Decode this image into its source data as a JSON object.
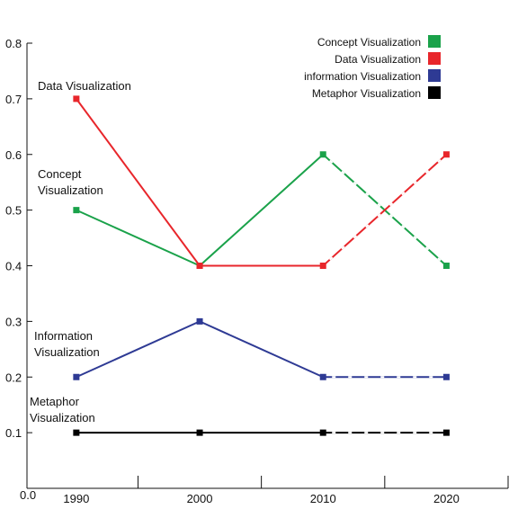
{
  "chart_data": {
    "type": "line",
    "title": "",
    "xlabel": "",
    "ylabel": "",
    "x": [
      1990,
      2000,
      2010,
      2020
    ],
    "x_tick_labels": [
      "1990",
      "2000",
      "2010",
      "2020"
    ],
    "xlim": [
      1986,
      2025
    ],
    "ylim": [
      0,
      0.8
    ],
    "y_ticks": [
      0.0,
      0.1,
      0.2,
      0.3,
      0.4,
      0.5,
      0.6,
      0.7,
      0.8
    ],
    "y_tick_labels": [
      "0.0",
      "0.1",
      "0.2",
      "0.3",
      "0.4",
      "0.5",
      "0.6",
      "0.7",
      "0.8"
    ],
    "grid": false,
    "legend_position": "top-right",
    "series": [
      {
        "name": "Concept Visualization",
        "color": "#1aa24a",
        "values": [
          0.5,
          0.4,
          0.6,
          0.4
        ],
        "annotation": [
          "Concept",
          "Visualization"
        ]
      },
      {
        "name": "Data Visualization",
        "color": "#e8262b",
        "values": [
          0.7,
          0.4,
          0.4,
          0.6
        ],
        "annotation": [
          "Data Visualization"
        ]
      },
      {
        "name": "information Visualization",
        "color": "#2e3a94",
        "values": [
          0.2,
          0.3,
          0.2,
          0.2
        ],
        "annotation": [
          "Information",
          "Visualization"
        ]
      },
      {
        "name": "Metaphor Visualization",
        "color": "#000000",
        "values": [
          0.1,
          0.1,
          0.1,
          0.1
        ],
        "annotation": [
          "Metaphor",
          "Visualization"
        ]
      }
    ],
    "dashed_after_x": 2010
  }
}
